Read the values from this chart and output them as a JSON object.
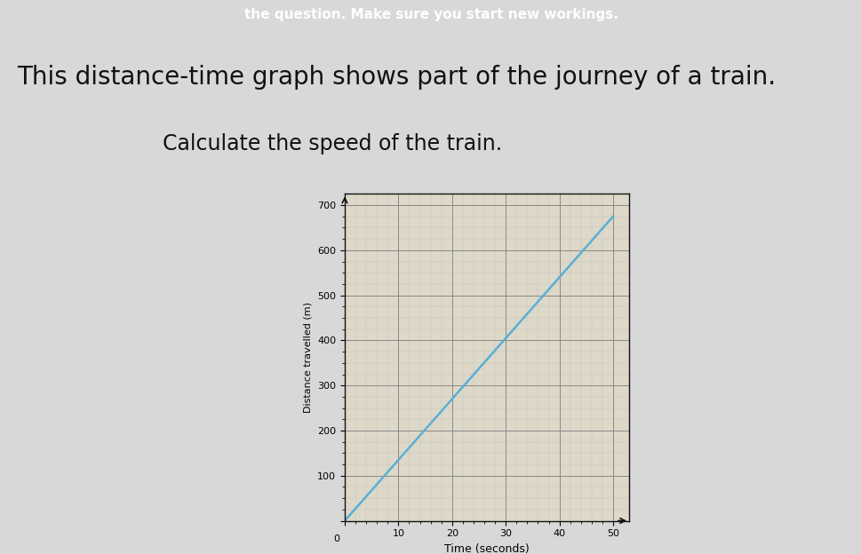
{
  "title_text": "This distance-time graph shows part of the journey of a train.",
  "subtitle_text": "Calculate the speed of the train.",
  "header_text": "the question. Make sure you start new workings.",
  "graph_bg_color": "#ddd8c8",
  "page_bg_color": "#d8d8d8",
  "header_bg_color": "#1e2240",
  "header_text_color": "#ffffff",
  "title_color": "#111111",
  "subtitle_color": "#111111",
  "xlabel": "Time (seconds)",
  "ylabel": "Distance travelled (m)",
  "xticks": [
    0,
    10,
    20,
    30,
    40,
    50
  ],
  "yticks": [
    0,
    100,
    200,
    300,
    400,
    500,
    600,
    700
  ],
  "line_x": [
    0,
    50
  ],
  "line_y": [
    0,
    675
  ],
  "line_color": "#5bafd6",
  "line_width": 1.8,
  "grid_major_color": "#888888",
  "grid_minor_color": "#bbbbbb",
  "axis_color": "#111111",
  "tick_label_fontsize": 8,
  "xlabel_fontsize": 9,
  "ylabel_fontsize": 8,
  "title_fontsize": 20,
  "subtitle_fontsize": 17,
  "header_fontsize": 11
}
